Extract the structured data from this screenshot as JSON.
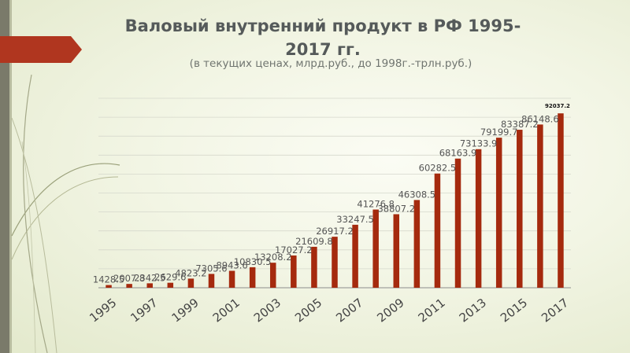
{
  "slide": {
    "title_line1": "Валовый внутренний продукт в РФ 1995-",
    "title_line2": "2017 гг.",
    "subtitle": "(в текущих ценах, млрд.руб., до 1998г.-трлн.руб.)",
    "accent_color": "#a52a0e",
    "banner_color": "#b0361f"
  },
  "chart_data": {
    "type": "bar",
    "categories": [
      "1995",
      "1996",
      "1997",
      "1998",
      "1999",
      "2000",
      "2001",
      "2002",
      "2003",
      "2004",
      "2005",
      "2006",
      "2007",
      "2008",
      "2009",
      "2010",
      "2011",
      "2012",
      "2013",
      "2014",
      "2015",
      "2016",
      "2017"
    ],
    "x_tick_labels": [
      "1995",
      "1997",
      "1999",
      "2001",
      "2003",
      "2005",
      "2007",
      "2009",
      "2011",
      "2013",
      "2015",
      "2017"
    ],
    "values": [
      1428.5,
      2007.8,
      2342.5,
      2629.6,
      4823.2,
      7305.6,
      8943.6,
      10830.5,
      13208.2,
      17027.2,
      21609.8,
      26917.2,
      33247.5,
      41276.8,
      38807.2,
      46308.5,
      60282.5,
      68163.9,
      73133.9,
      79199.7,
      83387.2,
      86148.6,
      92037.2
    ],
    "value_labels": [
      "1428.5",
      "2007.8",
      "2342.5",
      "2629.6",
      "4823.2",
      "7305.6",
      "8943.6",
      "10830.5",
      "13208.2",
      "17027.2",
      "21609.8",
      "26917.2",
      "33247.5",
      "41276.8",
      "38807.2",
      "46308.5",
      "60282.5",
      "68163.9",
      "73133.9",
      "79199.7",
      "83387.2",
      "86148.6",
      "92037.2"
    ],
    "ylim": [
      0,
      100000
    ],
    "grid": true,
    "bar_color": "#a52a0e",
    "label_color": "#555555",
    "last_label_color": "#111111"
  }
}
